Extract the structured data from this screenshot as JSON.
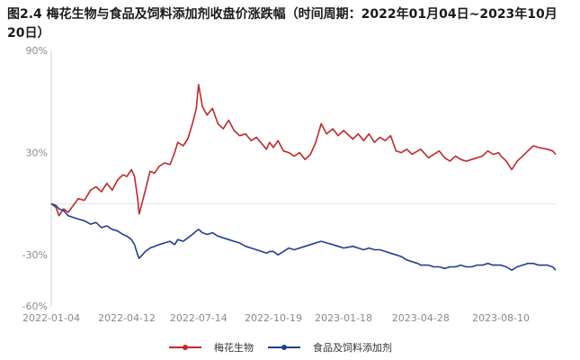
{
  "title": "图2.4 梅花生物与食品及饲料添加剂收盘价涨跌幅（时间周期：2022年01月04日~2023年10月20日）",
  "colors": {
    "series_a": "#c0292b",
    "series_b": "#1f3f8f",
    "axis": "#cfcfcf",
    "tick": "#8a8a8a"
  },
  "chart_data": {
    "type": "line",
    "title": "图2.4 梅花生物与食品及饲料添加剂收盘价涨跌幅（时间周期：2022年01月04日~2023年10月20日）",
    "xlabel": "",
    "ylabel": "",
    "x_ticks": [
      "2022-01-04",
      "2022-04-12",
      "2022-07-14",
      "2022-10-19",
      "2023-01-18",
      "2023-04-28",
      "2023-08-10"
    ],
    "y_ticks": [
      "90%",
      "30%",
      "-30%",
      "-60%"
    ],
    "ylim": [
      -60,
      90
    ],
    "x_range": [
      "2022-01-04",
      "2023-10-20"
    ],
    "legend_position": "bottom-center",
    "grid": false,
    "series": [
      {
        "name": "梅花生物",
        "color": "#c0292b",
        "points": [
          [
            "2022-01-04",
            0
          ],
          [
            "2022-01-10",
            -2
          ],
          [
            "2022-01-14",
            -7
          ],
          [
            "2022-01-20",
            -3
          ],
          [
            "2022-01-26",
            -5
          ],
          [
            "2022-02-08",
            3
          ],
          [
            "2022-02-16",
            2
          ],
          [
            "2022-02-24",
            8
          ],
          [
            "2022-03-03",
            10
          ],
          [
            "2022-03-10",
            7
          ],
          [
            "2022-03-17",
            12
          ],
          [
            "2022-03-24",
            8
          ],
          [
            "2022-03-31",
            14
          ],
          [
            "2022-04-07",
            17
          ],
          [
            "2022-04-12",
            16
          ],
          [
            "2022-04-18",
            20
          ],
          [
            "2022-04-22",
            16
          ],
          [
            "2022-04-26",
            3
          ],
          [
            "2022-04-28",
            -6
          ],
          [
            "2022-05-06",
            8
          ],
          [
            "2022-05-12",
            19
          ],
          [
            "2022-05-18",
            18
          ],
          [
            "2022-05-24",
            22
          ],
          [
            "2022-05-31",
            24
          ],
          [
            "2022-06-07",
            23
          ],
          [
            "2022-06-13",
            30
          ],
          [
            "2022-06-17",
            36
          ],
          [
            "2022-06-24",
            34
          ],
          [
            "2022-06-30",
            38
          ],
          [
            "2022-07-06",
            47
          ],
          [
            "2022-07-11",
            56
          ],
          [
            "2022-07-14",
            70
          ],
          [
            "2022-07-19",
            57
          ],
          [
            "2022-07-25",
            52
          ],
          [
            "2022-08-01",
            56
          ],
          [
            "2022-08-08",
            47
          ],
          [
            "2022-08-15",
            44
          ],
          [
            "2022-08-22",
            49
          ],
          [
            "2022-08-29",
            43
          ],
          [
            "2022-09-05",
            40
          ],
          [
            "2022-09-13",
            41
          ],
          [
            "2022-09-20",
            37
          ],
          [
            "2022-09-27",
            39
          ],
          [
            "2022-10-10",
            32
          ],
          [
            "2022-10-14",
            36
          ],
          [
            "2022-10-19",
            33
          ],
          [
            "2022-10-25",
            37
          ],
          [
            "2022-11-01",
            31
          ],
          [
            "2022-11-08",
            30
          ],
          [
            "2022-11-15",
            28
          ],
          [
            "2022-11-22",
            30
          ],
          [
            "2022-11-29",
            26
          ],
          [
            "2022-12-06",
            29
          ],
          [
            "2022-12-13",
            36
          ],
          [
            "2022-12-20",
            47
          ],
          [
            "2022-12-27",
            41
          ],
          [
            "2023-01-04",
            44
          ],
          [
            "2023-01-11",
            40
          ],
          [
            "2023-01-18",
            43
          ],
          [
            "2023-01-30",
            38
          ],
          [
            "2023-02-06",
            41
          ],
          [
            "2023-02-13",
            37
          ],
          [
            "2023-02-20",
            41
          ],
          [
            "2023-02-27",
            36
          ],
          [
            "2023-03-06",
            39
          ],
          [
            "2023-03-13",
            37
          ],
          [
            "2023-03-20",
            40
          ],
          [
            "2023-03-27",
            31
          ],
          [
            "2023-04-03",
            30
          ],
          [
            "2023-04-10",
            32
          ],
          [
            "2023-04-17",
            29
          ],
          [
            "2023-04-24",
            31
          ],
          [
            "2023-04-28",
            32
          ],
          [
            "2023-05-08",
            27
          ],
          [
            "2023-05-15",
            29
          ],
          [
            "2023-05-22",
            31
          ],
          [
            "2023-05-29",
            27
          ],
          [
            "2023-06-05",
            25
          ],
          [
            "2023-06-12",
            28
          ],
          [
            "2023-06-19",
            26
          ],
          [
            "2023-06-26",
            25
          ],
          [
            "2023-07-03",
            26
          ],
          [
            "2023-07-10",
            27
          ],
          [
            "2023-07-17",
            28
          ],
          [
            "2023-07-24",
            31
          ],
          [
            "2023-07-31",
            29
          ],
          [
            "2023-08-07",
            30
          ],
          [
            "2023-08-10",
            28
          ],
          [
            "2023-08-17",
            25
          ],
          [
            "2023-08-24",
            20
          ],
          [
            "2023-08-31",
            25
          ],
          [
            "2023-09-07",
            28
          ],
          [
            "2023-09-14",
            31
          ],
          [
            "2023-09-21",
            34
          ],
          [
            "2023-09-28",
            33
          ],
          [
            "2023-10-09",
            32
          ],
          [
            "2023-10-16",
            31
          ],
          [
            "2023-10-20",
            29
          ]
        ]
      },
      {
        "name": "食品及饲料添加剂",
        "color": "#1f3f8f",
        "points": [
          [
            "2022-01-04",
            0
          ],
          [
            "2022-01-10",
            -1
          ],
          [
            "2022-01-14",
            -3
          ],
          [
            "2022-01-20",
            -4
          ],
          [
            "2022-01-26",
            -7
          ],
          [
            "2022-02-08",
            -9
          ],
          [
            "2022-02-16",
            -10
          ],
          [
            "2022-02-24",
            -12
          ],
          [
            "2022-03-03",
            -11
          ],
          [
            "2022-03-10",
            -14
          ],
          [
            "2022-03-17",
            -13
          ],
          [
            "2022-03-24",
            -15
          ],
          [
            "2022-03-31",
            -16
          ],
          [
            "2022-04-07",
            -18
          ],
          [
            "2022-04-12",
            -19
          ],
          [
            "2022-04-18",
            -21
          ],
          [
            "2022-04-22",
            -24
          ],
          [
            "2022-04-26",
            -30
          ],
          [
            "2022-04-28",
            -32
          ],
          [
            "2022-05-06",
            -28
          ],
          [
            "2022-05-12",
            -26
          ],
          [
            "2022-05-18",
            -25
          ],
          [
            "2022-05-24",
            -24
          ],
          [
            "2022-05-31",
            -23
          ],
          [
            "2022-06-07",
            -22
          ],
          [
            "2022-06-13",
            -24
          ],
          [
            "2022-06-17",
            -21
          ],
          [
            "2022-06-24",
            -22
          ],
          [
            "2022-06-30",
            -20
          ],
          [
            "2022-07-06",
            -18
          ],
          [
            "2022-07-11",
            -16
          ],
          [
            "2022-07-14",
            -15
          ],
          [
            "2022-07-19",
            -17
          ],
          [
            "2022-07-25",
            -18
          ],
          [
            "2022-08-01",
            -17
          ],
          [
            "2022-08-08",
            -19
          ],
          [
            "2022-08-15",
            -20
          ],
          [
            "2022-08-22",
            -21
          ],
          [
            "2022-08-29",
            -22
          ],
          [
            "2022-09-05",
            -23
          ],
          [
            "2022-09-13",
            -25
          ],
          [
            "2022-09-20",
            -26
          ],
          [
            "2022-09-27",
            -27
          ],
          [
            "2022-10-10",
            -29
          ],
          [
            "2022-10-14",
            -28
          ],
          [
            "2022-10-19",
            -28
          ],
          [
            "2022-10-25",
            -30
          ],
          [
            "2022-11-01",
            -28
          ],
          [
            "2022-11-08",
            -26
          ],
          [
            "2022-11-15",
            -27
          ],
          [
            "2022-11-22",
            -26
          ],
          [
            "2022-11-29",
            -25
          ],
          [
            "2022-12-06",
            -24
          ],
          [
            "2022-12-13",
            -23
          ],
          [
            "2022-12-20",
            -22
          ],
          [
            "2022-12-27",
            -23
          ],
          [
            "2023-01-04",
            -24
          ],
          [
            "2023-01-11",
            -25
          ],
          [
            "2023-01-18",
            -26
          ],
          [
            "2023-01-30",
            -25
          ],
          [
            "2023-02-06",
            -26
          ],
          [
            "2023-02-13",
            -27
          ],
          [
            "2023-02-20",
            -26
          ],
          [
            "2023-02-27",
            -27
          ],
          [
            "2023-03-06",
            -27
          ],
          [
            "2023-03-13",
            -28
          ],
          [
            "2023-03-20",
            -29
          ],
          [
            "2023-03-27",
            -30
          ],
          [
            "2023-04-03",
            -31
          ],
          [
            "2023-04-10",
            -33
          ],
          [
            "2023-04-17",
            -34
          ],
          [
            "2023-04-24",
            -35
          ],
          [
            "2023-04-28",
            -36
          ],
          [
            "2023-05-08",
            -36
          ],
          [
            "2023-05-15",
            -37
          ],
          [
            "2023-05-22",
            -37
          ],
          [
            "2023-05-29",
            -38
          ],
          [
            "2023-06-05",
            -37
          ],
          [
            "2023-06-12",
            -37
          ],
          [
            "2023-06-19",
            -36
          ],
          [
            "2023-06-26",
            -37
          ],
          [
            "2023-07-03",
            -37
          ],
          [
            "2023-07-10",
            -36
          ],
          [
            "2023-07-17",
            -36
          ],
          [
            "2023-07-24",
            -35
          ],
          [
            "2023-07-31",
            -36
          ],
          [
            "2023-08-07",
            -36
          ],
          [
            "2023-08-10",
            -36
          ],
          [
            "2023-08-17",
            -37
          ],
          [
            "2023-08-24",
            -39
          ],
          [
            "2023-08-31",
            -37
          ],
          [
            "2023-09-07",
            -36
          ],
          [
            "2023-09-14",
            -35
          ],
          [
            "2023-09-21",
            -35
          ],
          [
            "2023-09-28",
            -36
          ],
          [
            "2023-10-09",
            -36
          ],
          [
            "2023-10-16",
            -37
          ],
          [
            "2023-10-20",
            -39
          ]
        ]
      }
    ]
  }
}
